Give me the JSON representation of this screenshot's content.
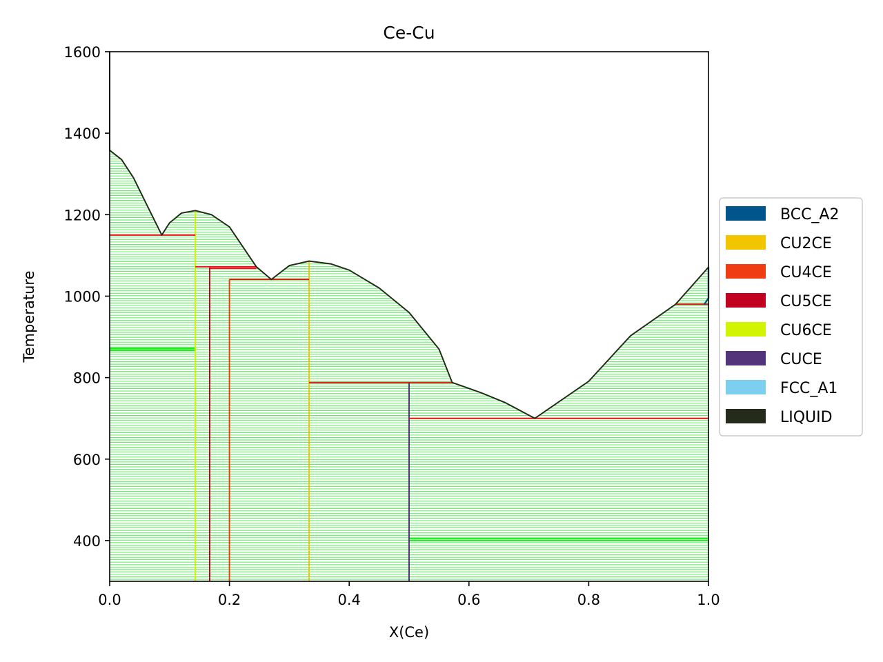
{
  "chart_data": {
    "type": "line",
    "title": "Ce-Cu",
    "xlabel": "X(Ce)",
    "ylabel": "Temperature",
    "xlim": [
      0.0,
      1.0
    ],
    "ylim": [
      300,
      1600
    ],
    "xticks": [
      "0.0",
      "0.2",
      "0.4",
      "0.6",
      "0.8",
      "1.0"
    ],
    "yticks": [
      "400",
      "600",
      "800",
      "1000",
      "1200",
      "1400",
      "1600"
    ],
    "grid": false,
    "legend_position": "center-right outside",
    "legend": [
      {
        "name": "BCC_A2",
        "color": "#00558c"
      },
      {
        "name": "CU2CE",
        "color": "#f2c500"
      },
      {
        "name": "CU4CE",
        "color": "#f03c12"
      },
      {
        "name": "CU5CE",
        "color": "#c20020"
      },
      {
        "name": "CU6CE",
        "color": "#d2f400"
      },
      {
        "name": "CUCE",
        "color": "#533379"
      },
      {
        "name": "FCC_A1",
        "color": "#7ccfee"
      },
      {
        "name": "LIQUID",
        "color": "#242b1a"
      }
    ],
    "tie_line_color": "#22ee22",
    "liquidus": [
      [
        0.0,
        1358
      ],
      [
        0.02,
        1335
      ],
      [
        0.04,
        1290
      ],
      [
        0.06,
        1230
      ],
      [
        0.087,
        1150
      ],
      [
        0.1,
        1180
      ],
      [
        0.12,
        1204
      ],
      [
        0.143,
        1210
      ],
      [
        0.17,
        1200
      ],
      [
        0.2,
        1170
      ],
      [
        0.245,
        1072
      ],
      [
        0.27,
        1041
      ],
      [
        0.3,
        1075
      ],
      [
        0.333,
        1086
      ],
      [
        0.37,
        1079
      ],
      [
        0.4,
        1064
      ],
      [
        0.45,
        1020
      ],
      [
        0.5,
        960
      ],
      [
        0.55,
        870
      ],
      [
        0.572,
        788
      ],
      [
        0.62,
        763
      ],
      [
        0.66,
        739
      ],
      [
        0.71,
        700
      ],
      [
        0.8,
        791
      ],
      [
        0.87,
        903
      ],
      [
        0.945,
        980
      ],
      [
        1.0,
        1071
      ]
    ],
    "bcc_a2_boundary": [
      [
        0.993,
        980
      ],
      [
        1.0,
        995
      ],
      [
        1.0,
        1071
      ]
    ],
    "compounds": [
      {
        "name": "CU6CE",
        "x": 0.143,
        "t_max": 1210,
        "color": "#d2f400"
      },
      {
        "name": "CU5CE",
        "x": 0.167,
        "t_max": 1070,
        "color": "#c20020"
      },
      {
        "name": "CU4CE",
        "x": 0.2,
        "t_max": 1041,
        "color": "#f03c12"
      },
      {
        "name": "CU2CE",
        "x": 0.333,
        "t_max": 1086,
        "color": "#f2c500"
      },
      {
        "name": "CUCE",
        "x": 0.5,
        "t_max": 788,
        "color": "#533379"
      }
    ],
    "invariants": [
      {
        "x1": 0.0,
        "x2": 0.143,
        "t": 1150
      },
      {
        "x1": 0.143,
        "x2": 0.245,
        "t": 1072
      },
      {
        "x1": 0.167,
        "x2": 0.245,
        "t": 1068
      },
      {
        "x1": 0.2,
        "x2": 0.333,
        "t": 1041
      },
      {
        "x1": 0.333,
        "x2": 0.572,
        "t": 788
      },
      {
        "x1": 0.5,
        "x2": 1.0,
        "t": 700
      },
      {
        "x1": 0.945,
        "x2": 1.0,
        "t": 980
      }
    ],
    "dense_tie_lines": [
      {
        "x1": 0.0,
        "x2": 0.143,
        "t": 867
      },
      {
        "x1": 0.0,
        "x2": 0.143,
        "t": 872
      },
      {
        "x1": 0.5,
        "x2": 1.0,
        "t": 400
      },
      {
        "x1": 0.5,
        "x2": 1.0,
        "t": 405
      }
    ]
  }
}
